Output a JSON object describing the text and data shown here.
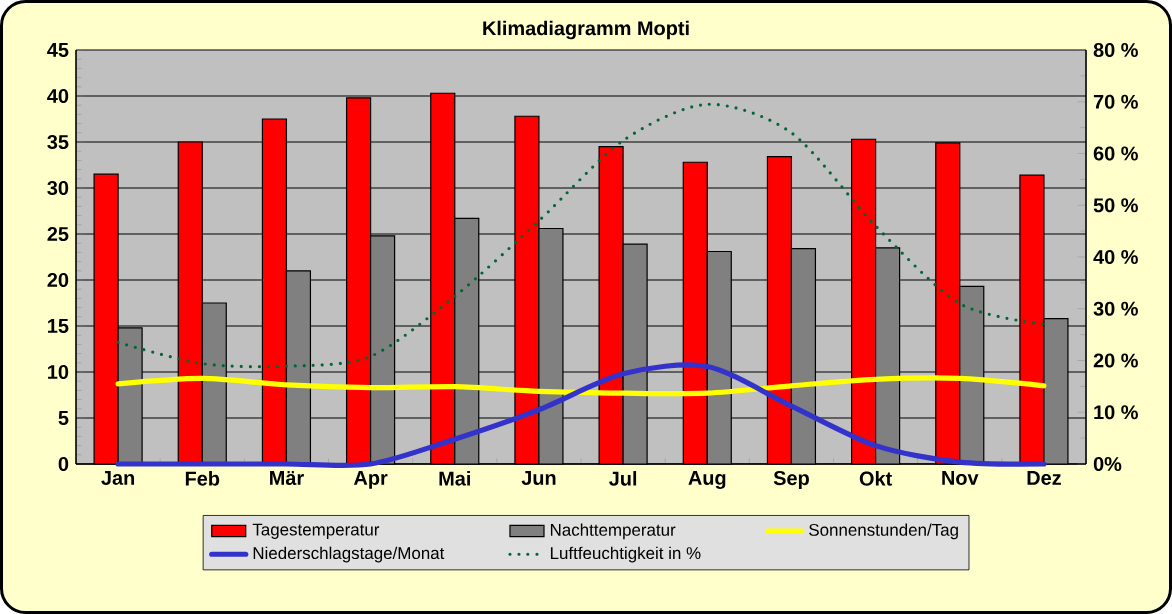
{
  "chart_data": {
    "type": "bar",
    "title": "Klimadiagramm Mopti",
    "categories": [
      "Jan",
      "Feb",
      "Mär",
      "Apr",
      "Mai",
      "Jun",
      "Jul",
      "Aug",
      "Sep",
      "Okt",
      "Nov",
      "Dez"
    ],
    "series": [
      {
        "name": "Tagestemperatur",
        "color": "#ff0000",
        "values": [
          31.5,
          35,
          37.5,
          39.8,
          40.3,
          37.8,
          34.5,
          32.8,
          33.4,
          35.3,
          34.9,
          31.4
        ]
      },
      {
        "name": "Nachttemperatur",
        "color": "#808080",
        "values": [
          14.8,
          17.5,
          21,
          24.8,
          26.7,
          25.6,
          23.9,
          23.1,
          23.4,
          23.5,
          19.3,
          15.8
        ]
      },
      {
        "name": "Sonnenstunden/Tag",
        "type": "line",
        "color": "#ffff00",
        "values": [
          8.7,
          9.3,
          8.6,
          8.3,
          8.4,
          7.9,
          7.7,
          7.7,
          8.5,
          9.2,
          9.3,
          8.5
        ]
      },
      {
        "name": "Niederschlagstage/Monat",
        "type": "line",
        "color": "#3333cc",
        "values": [
          0,
          0,
          0,
          0,
          2.7,
          5.9,
          9.8,
          10.6,
          6.3,
          2,
          0.2,
          0
        ]
      },
      {
        "name": "Luftfeuchtigkeit in %",
        "type": "line",
        "axis": "y2",
        "line_style": "dotted",
        "color": "#006633",
        "values": [
          23.5,
          19.4,
          18.9,
          20.8,
          32.4,
          47,
          62.5,
          69.5,
          64,
          46,
          31,
          27
        ]
      }
    ],
    "ylim": [
      0,
      45
    ],
    "yticks": [
      0,
      5,
      10,
      15,
      20,
      25,
      30,
      35,
      40,
      45
    ],
    "y2lim": [
      0,
      80
    ],
    "y2ticks": [
      {
        "value": 0,
        "label": "0%"
      },
      {
        "value": 10,
        "label": "10 %"
      },
      {
        "value": 20,
        "label": "20 %"
      },
      {
        "value": 30,
        "label": "30 %"
      },
      {
        "value": 40,
        "label": "40 %"
      },
      {
        "value": 50,
        "label": "50 %"
      },
      {
        "value": 60,
        "label": "60 %"
      },
      {
        "value": 70,
        "label": "70 %"
      },
      {
        "value": 80,
        "label": "80 %"
      }
    ],
    "grid": "y",
    "legend": "bottom"
  }
}
